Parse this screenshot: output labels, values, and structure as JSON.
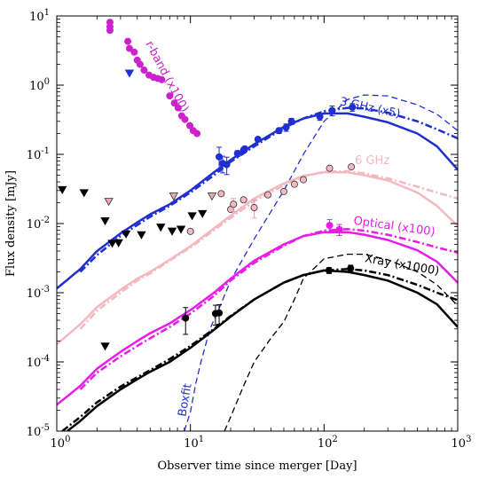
{
  "chart_data": {
    "type": "scatter",
    "xlabel": "Observer time since merger [Day]",
    "ylabel": "Flux density [mJy]",
    "xscale": "log",
    "yscale": "log",
    "xlim": [
      1,
      1000
    ],
    "ylim": [
      1e-05,
      10
    ],
    "x_tick_labels": [
      "10^0",
      "10^1",
      "10^2",
      "10^3"
    ],
    "y_tick_labels": [
      "10^-5",
      "10^-4",
      "10^-3",
      "10^-2",
      "10^-1",
      "10^0",
      "10^1"
    ],
    "grid": false,
    "colors": {
      "radio3": "#1f2fd1",
      "radio6": "#f4b8c0",
      "optical": "#e81ce8",
      "xray": "#000000",
      "rband": "#cc22cc"
    },
    "annotations": [
      {
        "text": "3 GHz (x5)",
        "color": "#1f2fd1",
        "at": [
          130,
          0.52
        ],
        "rotate": 12
      },
      {
        "text": "6 GHz",
        "color": "#f4b8c0",
        "at": [
          170,
          0.072
        ],
        "rotate": 0
      },
      {
        "text": "Optical (x100)",
        "color": "#e81ce8",
        "at": [
          165,
          0.0098
        ],
        "rotate": 8
      },
      {
        "text": "Xray (x1000)",
        "color": "#000000",
        "at": [
          200,
          0.0028
        ],
        "rotate": 10
      },
      {
        "text": "r-band (x100)",
        "color": "#cc22cc",
        "at": [
          4.6,
          4.0
        ],
        "rotate": 62
      },
      {
        "text": "Boxfit",
        "color": "#1f2fd1",
        "at": [
          9.2,
          1.6e-05
        ],
        "rotate": -80
      }
    ],
    "series": [
      {
        "kind": "line",
        "style": "solid",
        "color": "#1f2fd1",
        "width": 2.5,
        "x": [
          1,
          1.5,
          2,
          3,
          4,
          5,
          7,
          10,
          15,
          20,
          30,
          50,
          70,
          100,
          150,
          200,
          300,
          500,
          700,
          1000
        ],
        "y": [
          0.00115,
          0.0022,
          0.004,
          0.0072,
          0.0104,
          0.0136,
          0.019,
          0.03,
          0.055,
          0.083,
          0.14,
          0.25,
          0.33,
          0.39,
          0.39,
          0.35,
          0.29,
          0.2,
          0.13,
          0.06
        ]
      },
      {
        "kind": "line",
        "style": "dashdot",
        "color": "#1f2fd1",
        "width": 2.5,
        "x": [
          1.5,
          2,
          3,
          4,
          5,
          7,
          10,
          15,
          20,
          30,
          50,
          70,
          100,
          150,
          200,
          300,
          500,
          700,
          1000
        ],
        "y": [
          0.002,
          0.0035,
          0.0066,
          0.0095,
          0.0125,
          0.018,
          0.028,
          0.05,
          0.078,
          0.13,
          0.24,
          0.33,
          0.42,
          0.47,
          0.46,
          0.4,
          0.3,
          0.23,
          0.17
        ]
      },
      {
        "kind": "line",
        "style": "dashed",
        "color": "#1f2fd1",
        "width": 1.3,
        "x": [
          9,
          10,
          11,
          12,
          14,
          17,
          20,
          30,
          50,
          70,
          100,
          150,
          200,
          300,
          500,
          700,
          1000
        ],
        "y": [
          1e-05,
          1.9e-05,
          5e-05,
          0.0001,
          0.0003,
          0.0007,
          0.0015,
          0.006,
          0.03,
          0.1,
          0.3,
          0.62,
          0.72,
          0.7,
          0.52,
          0.38,
          0.22
        ]
      },
      {
        "kind": "line",
        "style": "solid",
        "color": "#f4b8c0",
        "width": 2.5,
        "x": [
          1,
          1.5,
          2,
          3,
          4,
          5,
          7,
          10,
          15,
          20,
          30,
          50,
          70,
          100,
          150,
          200,
          300,
          500,
          700,
          1000
        ],
        "y": [
          0.00018,
          0.00035,
          0.00062,
          0.0011,
          0.0016,
          0.002,
          0.003,
          0.0047,
          0.0085,
          0.013,
          0.023,
          0.038,
          0.049,
          0.055,
          0.055,
          0.05,
          0.042,
          0.028,
          0.018,
          0.0092
        ]
      },
      {
        "kind": "line",
        "style": "dashdot",
        "color": "#f4b8c0",
        "width": 2.5,
        "x": [
          1.5,
          2,
          3,
          4,
          5,
          7,
          10,
          15,
          20,
          30,
          50,
          70,
          100,
          150,
          200,
          300,
          500,
          700,
          1000
        ],
        "y": [
          0.0003,
          0.00055,
          0.001,
          0.0015,
          0.0019,
          0.0029,
          0.0045,
          0.008,
          0.012,
          0.021,
          0.036,
          0.048,
          0.056,
          0.057,
          0.053,
          0.045,
          0.034,
          0.028,
          0.023
        ]
      },
      {
        "kind": "line",
        "style": "solid",
        "color": "#e81ce8",
        "width": 2.5,
        "x": [
          1,
          1.5,
          2,
          3,
          4,
          5,
          7,
          10,
          15,
          20,
          30,
          50,
          70,
          100,
          150,
          200,
          300,
          500,
          700,
          1000
        ],
        "y": [
          2.4e-05,
          4.5e-05,
          8e-05,
          0.00014,
          0.0002,
          0.00026,
          0.00036,
          0.00056,
          0.001,
          0.0016,
          0.0029,
          0.005,
          0.0066,
          0.0075,
          0.0075,
          0.0069,
          0.0058,
          0.0041,
          0.0028,
          0.0014
        ]
      },
      {
        "kind": "line",
        "style": "dashdot",
        "color": "#e81ce8",
        "width": 2.5,
        "x": [
          1.5,
          2,
          3,
          4,
          5,
          7,
          10,
          15,
          20,
          30,
          50,
          70,
          100,
          150,
          200,
          300,
          500,
          700,
          1000
        ],
        "y": [
          4e-05,
          7e-05,
          0.00012,
          0.00017,
          0.00022,
          0.00032,
          0.0005,
          0.0009,
          0.0015,
          0.0027,
          0.0048,
          0.0066,
          0.0079,
          0.0083,
          0.0079,
          0.0069,
          0.0054,
          0.0045,
          0.0038
        ]
      },
      {
        "kind": "line",
        "style": "solid",
        "color": "#000000",
        "width": 2.5,
        "x": [
          1.2,
          1.5,
          2,
          3,
          4,
          5,
          7,
          10,
          15,
          20,
          30,
          50,
          70,
          100,
          150,
          200,
          300,
          500,
          700,
          1000
        ],
        "y": [
          1e-05,
          1.4e-05,
          2.3e-05,
          4e-05,
          5.6e-05,
          7.2e-05,
          0.0001,
          0.00016,
          0.00029,
          0.00045,
          0.0008,
          0.0014,
          0.0018,
          0.0021,
          0.002,
          0.0018,
          0.0015,
          0.001,
          0.00068,
          0.00032
        ]
      },
      {
        "kind": "line",
        "style": "dashdot",
        "color": "#000000",
        "width": 2.5,
        "x": [
          1.1,
          1.5,
          2,
          3,
          4,
          5,
          7,
          10,
          15,
          20,
          30,
          50,
          70,
          100,
          150,
          200,
          300,
          500,
          700,
          1000
        ],
        "y": [
          1e-05,
          1.6e-05,
          2.6e-05,
          4.4e-05,
          6e-05,
          7.6e-05,
          0.00011,
          0.00017,
          0.0003,
          0.00046,
          0.0008,
          0.0014,
          0.0018,
          0.0021,
          0.0022,
          0.0021,
          0.0018,
          0.0013,
          0.001,
          0.00078
        ]
      },
      {
        "kind": "line",
        "style": "dashed",
        "color": "#000000",
        "width": 1.3,
        "x": [
          18,
          20,
          25,
          30,
          40,
          50,
          60,
          70,
          100,
          150,
          200,
          300,
          500,
          700,
          1000
        ],
        "y": [
          1e-05,
          1.6e-05,
          4.5e-05,
          0.0001,
          0.00022,
          0.00038,
          0.0008,
          0.0016,
          0.0031,
          0.0036,
          0.0036,
          0.003,
          0.002,
          0.0013,
          0.00065
        ]
      },
      {
        "kind": "points",
        "marker": "circle",
        "color": "#1f2fd1",
        "stroke": "#1f2fd1",
        "x": [
          16.4,
          17.4,
          18.7,
          22.5,
          25,
          25.5,
          32,
          46,
          52,
          57,
          93,
          115,
          163
        ],
        "y": [
          0.092,
          0.074,
          0.071,
          0.103,
          0.115,
          0.12,
          0.165,
          0.22,
          0.245,
          0.3,
          0.35,
          0.43,
          0.48
        ],
        "err": [
          0.035,
          0.02,
          0.02,
          0.01,
          0.01,
          0.01,
          0.01,
          0.02,
          0.03,
          0.03,
          0.04,
          0.07,
          0.06
        ]
      },
      {
        "kind": "points",
        "marker": "circle",
        "color": "#f4b8c0",
        "stroke": "#333333",
        "x": [
          10,
          17,
          20,
          21,
          25,
          30,
          38,
          50,
          60,
          70,
          110,
          160
        ],
        "y": [
          0.0077,
          0.027,
          0.016,
          0.019,
          0.022,
          0.017,
          0.026,
          0.029,
          0.037,
          0.043,
          0.063,
          0.066
        ],
        "err": [
          0,
          0,
          0,
          0.004,
          0,
          0.005,
          0,
          0,
          0,
          0,
          0,
          0
        ]
      },
      {
        "kind": "points",
        "marker": "circle",
        "color": "#e81ce8",
        "stroke": "#e81ce8",
        "x": [
          110,
          130
        ],
        "y": [
          0.0094,
          0.0082
        ],
        "err": [
          0.002,
          0.0015
        ]
      },
      {
        "kind": "points",
        "marker": "circle",
        "color": "#000000",
        "stroke": "#000000",
        "x": [
          9.2,
          15.4,
          16.4,
          109,
          158
        ],
        "y": [
          0.00043,
          0.0005,
          0.00051,
          0.0021,
          0.00225
        ],
        "err": [
          0.00018,
          0.00016,
          0.00016,
          0.0002,
          0.00025
        ]
      },
      {
        "kind": "points",
        "marker": "circle",
        "color": "#cc22cc",
        "stroke": "#cc22cc",
        "x": [
          2.5,
          2.5,
          2.5,
          3.4,
          3.5,
          3.8,
          4.0,
          4.2,
          4.5,
          4.9,
          5.3,
          5.7,
          6.1,
          7.0,
          7.6,
          8.1,
          8.6,
          9.1,
          9.9,
          10.5,
          11.2
        ],
        "y": [
          8.1,
          7.0,
          6.2,
          4.3,
          3.4,
          3.0,
          2.3,
          2.0,
          1.65,
          1.4,
          1.3,
          1.25,
          1.2,
          0.7,
          0.55,
          0.47,
          0.36,
          0.32,
          0.26,
          0.22,
          0.2
        ]
      },
      {
        "kind": "points",
        "marker": "triangle-down",
        "color": "#000000",
        "stroke": "#000000",
        "x": [
          1.1,
          1.6,
          2.3,
          2.6,
          2.9,
          3.3,
          4.3,
          6,
          7.3,
          8.5,
          10.3,
          12.3,
          2.3
        ],
        "y": [
          0.031,
          0.028,
          0.011,
          0.0052,
          0.0053,
          0.0071,
          0.0069,
          0.0089,
          0.0078,
          0.0083,
          0.013,
          0.014,
          0.00017
        ]
      },
      {
        "kind": "points",
        "marker": "triangle-down",
        "color": "#e9a8b8",
        "stroke": "#333333",
        "x": [
          2.45,
          7.5,
          14.5
        ],
        "y": [
          0.021,
          0.025,
          0.025
        ]
      },
      {
        "kind": "points",
        "marker": "triangle-down",
        "color": "#1f2fd1",
        "stroke": "#1f2fd1",
        "x": [
          3.5
        ],
        "y": [
          1.5
        ]
      }
    ]
  }
}
